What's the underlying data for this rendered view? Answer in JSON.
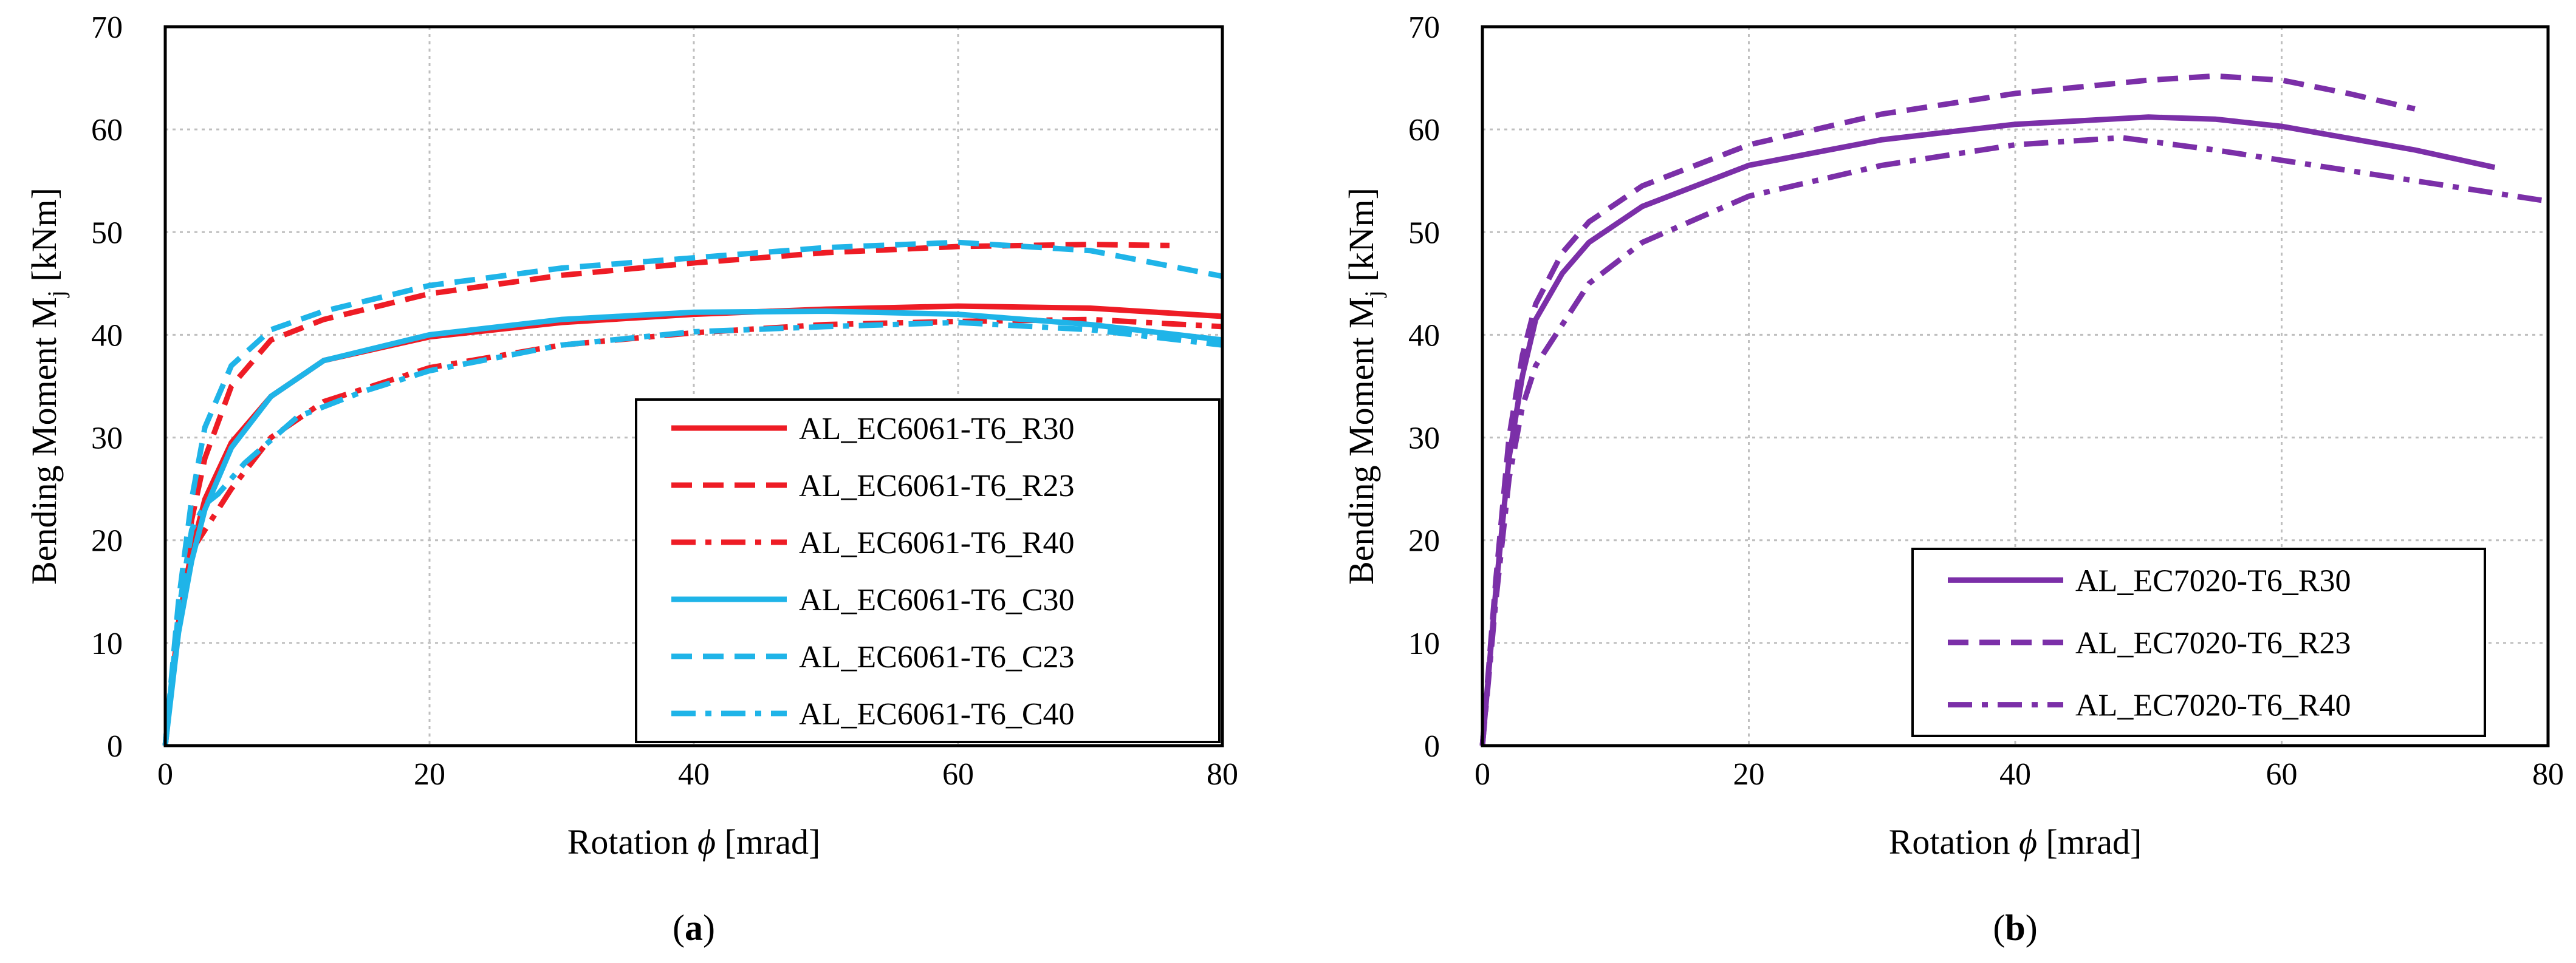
{
  "chart_data": [
    {
      "type": "line",
      "panel_label": "a",
      "xlabel": "Rotation",
      "xlabel_symbol": "ϕ",
      "xlabel_unit": "[mrad]",
      "ylabel": "Bending Moment M",
      "ylabel_sub": "j",
      "ylabel_unit": "[kNm]",
      "xlim": [
        0,
        80
      ],
      "ylim": [
        0,
        70
      ],
      "xticks": [
        0,
        20,
        40,
        60,
        80
      ],
      "yticks": [
        0,
        10,
        20,
        30,
        40,
        50,
        60,
        70
      ],
      "grid": true,
      "legend_position": "bottom-right",
      "series": [
        {
          "name": "AL_EC6061-T6_R30",
          "color": "#ee1c25",
          "style": "solid",
          "x": [
            0,
            1,
            2,
            3,
            5,
            8,
            12,
            20,
            30,
            40,
            50,
            60,
            70,
            80
          ],
          "y": [
            0,
            12,
            19,
            24,
            29.5,
            34,
            37.5,
            39.8,
            41.2,
            42,
            42.5,
            42.8,
            42.6,
            41.8
          ]
        },
        {
          "name": "AL_EC6061-T6_R23",
          "color": "#ee1c25",
          "style": "dash",
          "x": [
            0,
            1,
            2,
            3,
            5,
            8,
            12,
            20,
            30,
            40,
            50,
            60,
            70,
            76
          ],
          "y": [
            0,
            13,
            22,
            28,
            35,
            39.5,
            41.5,
            44,
            45.8,
            47,
            48,
            48.6,
            48.8,
            48.7
          ]
        },
        {
          "name": "AL_EC6061-T6_R40",
          "color": "#ee1c25",
          "style": "dashdot",
          "x": [
            0,
            1,
            2,
            3,
            5,
            8,
            12,
            20,
            30,
            40,
            50,
            60,
            70,
            80
          ],
          "y": [
            0,
            12,
            19,
            21,
            25,
            30,
            33.5,
            36.8,
            39,
            40.2,
            41,
            41.3,
            41.5,
            40.8
          ]
        },
        {
          "name": "AL_EC6061-T6_C30",
          "color": "#1fb4e8",
          "style": "solid",
          "x": [
            0,
            1,
            2,
            3,
            5,
            8,
            12,
            20,
            30,
            40,
            50,
            60,
            70,
            80
          ],
          "y": [
            0,
            11,
            18,
            23,
            29,
            34,
            37.5,
            40,
            41.5,
            42.2,
            42.3,
            42,
            41,
            39.5
          ]
        },
        {
          "name": "AL_EC6061-T6_C23",
          "color": "#1fb4e8",
          "style": "dash",
          "x": [
            0,
            1,
            2,
            3,
            5,
            8,
            12,
            20,
            30,
            40,
            50,
            60,
            70,
            80
          ],
          "y": [
            0,
            14,
            24,
            31,
            37,
            40.5,
            42.3,
            44.8,
            46.5,
            47.5,
            48.5,
            49,
            48.2,
            45.7
          ]
        },
        {
          "name": "AL_EC6061-T6_C40",
          "color": "#1fb4e8",
          "style": "dashdot",
          "x": [
            0,
            1,
            2,
            3,
            4,
            6,
            10,
            15,
            20,
            30,
            40,
            50,
            60,
            70,
            80
          ],
          "y": [
            0,
            13,
            21,
            23.5,
            24.5,
            27.5,
            32,
            34.5,
            36.5,
            39,
            40.3,
            40.8,
            41.2,
            40.5,
            39
          ]
        }
      ]
    },
    {
      "type": "line",
      "panel_label": "b",
      "xlabel": "Rotation",
      "xlabel_symbol": "ϕ",
      "xlabel_unit": "[mrad]",
      "ylabel": "Bending Moment M",
      "ylabel_sub": "j",
      "ylabel_unit": "[kNm]",
      "xlim": [
        0,
        80
      ],
      "ylim": [
        0,
        70
      ],
      "xticks": [
        0,
        20,
        40,
        60,
        80
      ],
      "yticks": [
        0,
        10,
        20,
        30,
        40,
        50,
        60,
        70
      ],
      "grid": true,
      "legend_position": "bottom-right",
      "series": [
        {
          "name": "AL_EC7020-T6_R30",
          "color": "#7b2fa8",
          "style": "solid",
          "x": [
            0,
            1,
            2,
            3,
            4,
            6,
            8,
            12,
            20,
            30,
            40,
            50,
            55,
            60,
            70,
            76
          ],
          "y": [
            0,
            15,
            28,
            36,
            41.5,
            46,
            49,
            52.5,
            56.5,
            59,
            60.5,
            61.2,
            61,
            60.3,
            58,
            56.3
          ]
        },
        {
          "name": "AL_EC7020-T6_R23",
          "color": "#7b2fa8",
          "style": "dash",
          "x": [
            0,
            1,
            2,
            3,
            4,
            6,
            8,
            12,
            20,
            30,
            40,
            50,
            55,
            60,
            65,
            70
          ],
          "y": [
            0,
            16,
            30,
            38,
            43,
            48,
            51,
            54.5,
            58.5,
            61.5,
            63.5,
            64.8,
            65.2,
            64.8,
            63.5,
            62
          ]
        },
        {
          "name": "AL_EC7020-T6_R40",
          "color": "#7b2fa8",
          "style": "dashdot",
          "x": [
            0,
            1,
            2,
            3,
            4,
            6,
            8,
            12,
            20,
            30,
            40,
            48,
            55,
            60,
            70,
            80
          ],
          "y": [
            0,
            14,
            26,
            33,
            37,
            41,
            45,
            49,
            53.5,
            56.5,
            58.5,
            59.2,
            58,
            57,
            55,
            53
          ]
        }
      ]
    }
  ]
}
